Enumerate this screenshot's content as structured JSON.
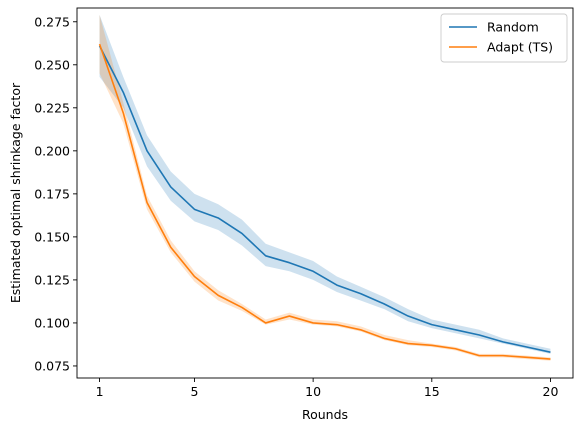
{
  "chart_data": {
    "type": "line",
    "title": "",
    "xlabel": "Rounds",
    "ylabel": "Estimated optimal shrinkage factor",
    "xlim": [
      0.05,
      20.95
    ],
    "ylim": [
      0.068,
      0.283
    ],
    "xticks": [
      1,
      5,
      10,
      15,
      20
    ],
    "yticks": [
      0.075,
      0.1,
      0.125,
      0.15,
      0.175,
      0.2,
      0.225,
      0.25,
      0.275
    ],
    "ytick_labels": [
      "0.075",
      "0.100",
      "0.125",
      "0.150",
      "0.175",
      "0.200",
      "0.225",
      "0.250",
      "0.275"
    ],
    "grid": false,
    "legend_position": "top-right",
    "x": [
      1,
      2,
      3,
      4,
      5,
      6,
      7,
      8,
      9,
      10,
      11,
      12,
      13,
      14,
      15,
      16,
      17,
      18,
      19,
      20
    ],
    "series": [
      {
        "name": "Random",
        "color": "#1f77b4",
        "values": [
          0.261,
          0.234,
          0.2,
          0.179,
          0.166,
          0.161,
          0.152,
          0.139,
          0.135,
          0.13,
          0.122,
          0.117,
          0.111,
          0.104,
          0.099,
          0.096,
          0.093,
          0.089,
          0.086,
          0.083
        ],
        "lower": [
          0.243,
          0.225,
          0.191,
          0.171,
          0.159,
          0.154,
          0.145,
          0.133,
          0.13,
          0.125,
          0.118,
          0.113,
          0.108,
          0.101,
          0.097,
          0.094,
          0.091,
          0.088,
          0.085,
          0.082
        ],
        "upper": [
          0.279,
          0.243,
          0.209,
          0.188,
          0.175,
          0.169,
          0.16,
          0.146,
          0.141,
          0.136,
          0.127,
          0.121,
          0.115,
          0.108,
          0.102,
          0.099,
          0.096,
          0.091,
          0.088,
          0.085
        ]
      },
      {
        "name": "Adapt (TS)",
        "color": "#ff7f0e",
        "values": [
          0.262,
          0.222,
          0.17,
          0.144,
          0.127,
          0.116,
          0.109,
          0.1,
          0.104,
          0.1,
          0.099,
          0.096,
          0.091,
          0.088,
          0.087,
          0.085,
          0.081,
          0.081,
          0.08,
          0.079
        ],
        "lower": [
          0.245,
          0.216,
          0.166,
          0.141,
          0.124,
          0.113,
          0.107,
          0.099,
          0.102,
          0.099,
          0.098,
          0.095,
          0.09,
          0.087,
          0.086,
          0.084,
          0.08,
          0.08,
          0.079,
          0.078
        ],
        "upper": [
          0.279,
          0.228,
          0.174,
          0.148,
          0.13,
          0.119,
          0.111,
          0.102,
          0.106,
          0.102,
          0.101,
          0.098,
          0.093,
          0.09,
          0.088,
          0.086,
          0.082,
          0.082,
          0.081,
          0.08
        ]
      }
    ]
  }
}
